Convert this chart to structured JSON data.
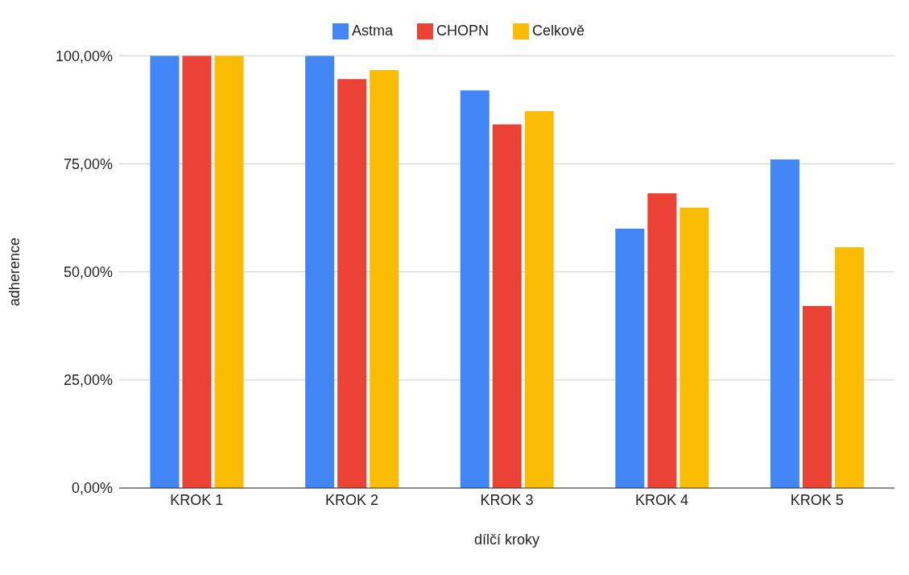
{
  "chart_data": {
    "type": "bar",
    "xlabel": "dílčí kroky",
    "ylabel": "adherence",
    "categories": [
      "KROK 1",
      "KROK 2",
      "KROK 3",
      "KROK 4",
      "KROK 5"
    ],
    "series": [
      {
        "name": "Astma",
        "color": "#4285f4",
        "values": [
          100,
          100,
          92,
          60,
          76
        ]
      },
      {
        "name": "CHOPN",
        "color": "#ea4335",
        "values": [
          100,
          94.6,
          84.1,
          68.2,
          42.1
        ]
      },
      {
        "name": "Celkově",
        "color": "#fbbc04",
        "values": [
          100,
          96.7,
          87.2,
          64.9,
          55.7
        ]
      }
    ],
    "ylim": [
      0,
      100
    ],
    "yticks": [
      {
        "value": 0,
        "label": "0,00%"
      },
      {
        "value": 25,
        "label": "25,00%"
      },
      {
        "value": 50,
        "label": "50,00%"
      },
      {
        "value": 75,
        "label": "75,00%"
      },
      {
        "value": 100,
        "label": "100,00%"
      }
    ],
    "grid": "y",
    "legend": "top"
  }
}
